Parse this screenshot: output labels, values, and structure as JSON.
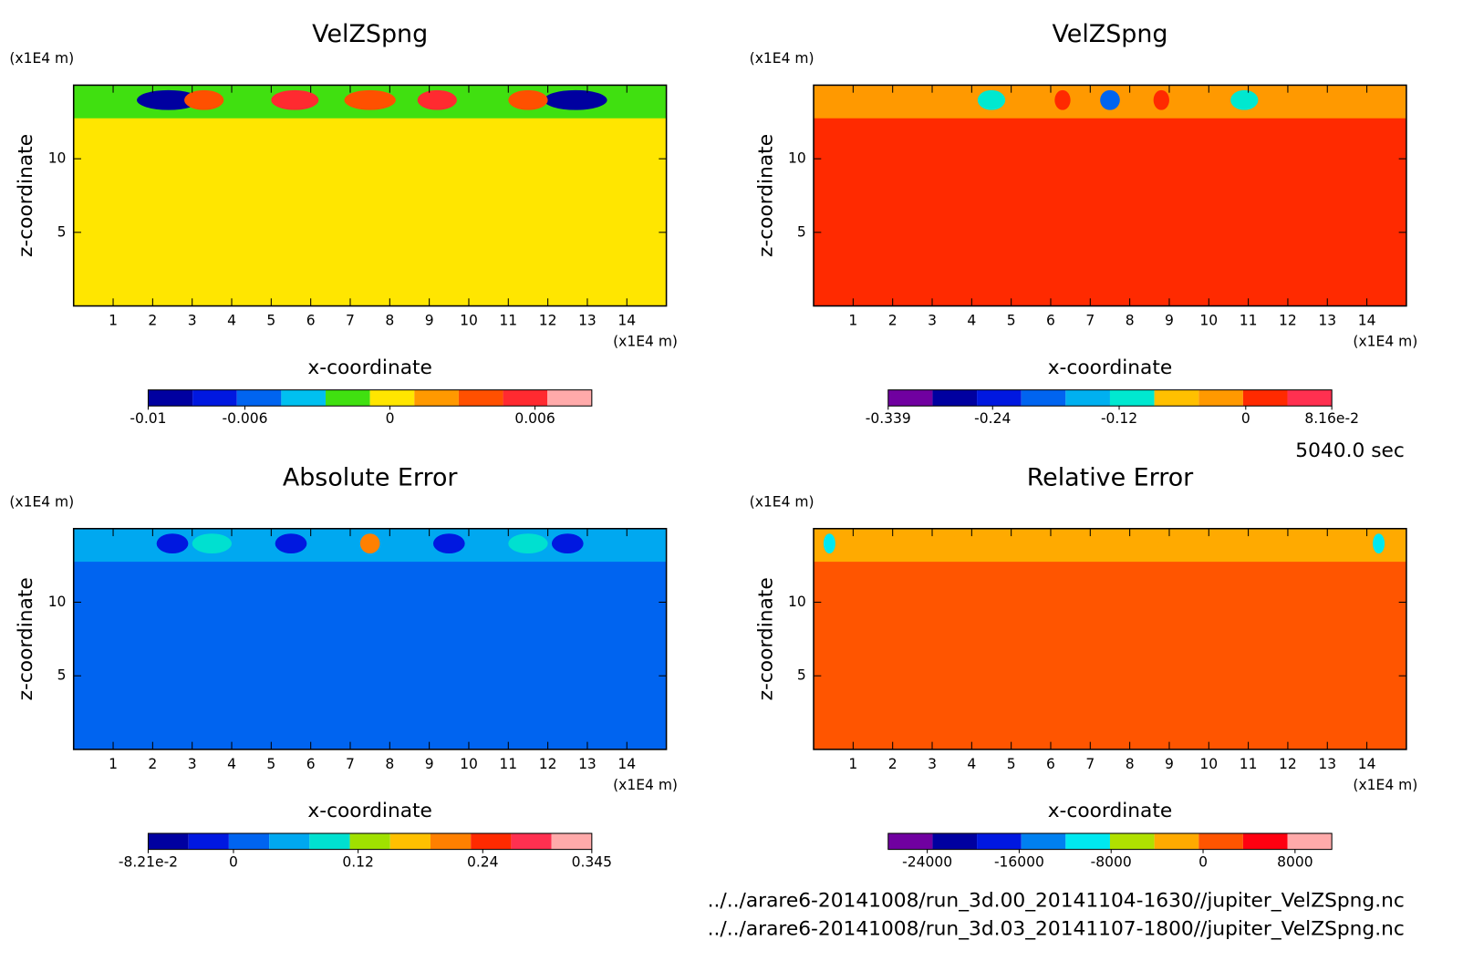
{
  "chart_data": [
    {
      "type": "contour",
      "title": "VelZSpng",
      "xlabel": "x-coordinate",
      "ylabel": "z-coordinate",
      "xunit": "(x1E4 m)",
      "yunit": "(x1E4 m)",
      "xlim": [
        0,
        15
      ],
      "ylim": [
        0,
        15
      ],
      "xticks": [
        1,
        2,
        3,
        4,
        5,
        6,
        7,
        8,
        9,
        10,
        11,
        12,
        13,
        14
      ],
      "yticks": [
        5,
        10
      ],
      "fill_color": "#ffe600",
      "band_color": "#40e010",
      "colorbar": {
        "clim": [
          -0.01,
          0.00835
        ],
        "colors": [
          "#0000a0",
          "#0018e0",
          "#0064f0",
          "#00c0f0",
          "#40e010",
          "#ffe600",
          "#ff9900",
          "#ff5000",
          "#ff2a30",
          "#ffaaaa"
        ],
        "ticks": [
          -0.01,
          -0.006,
          0,
          0.006
        ]
      }
    },
    {
      "type": "contour",
      "title": "VelZSpng",
      "xlabel": "x-coordinate",
      "ylabel": "z-coordinate",
      "xunit": "(x1E4 m)",
      "yunit": "(x1E4 m)",
      "xlim": [
        0,
        15
      ],
      "ylim": [
        0,
        15
      ],
      "xticks": [
        1,
        2,
        3,
        4,
        5,
        6,
        7,
        8,
        9,
        10,
        11,
        12,
        13,
        14
      ],
      "yticks": [
        5,
        10
      ],
      "fill_color": "#ff2a00",
      "band_color": "#ff9900",
      "colorbar": {
        "clim": [
          -0.339,
          0.0816
        ],
        "colors": [
          "#7000a0",
          "#0000a0",
          "#0018e0",
          "#0064f0",
          "#00b0f0",
          "#00e8d0",
          "#ffc000",
          "#ff9900",
          "#ff2a00",
          "#ff3050"
        ],
        "ticks": [
          -0.339,
          -0.24,
          -0.12,
          0,
          {
            "value": 0.0816,
            "label": "8.16e-2"
          }
        ]
      }
    },
    {
      "type": "contour",
      "title": "Absolute Error",
      "xlabel": "x-coordinate",
      "ylabel": "z-coordinate",
      "xunit": "(x1E4 m)",
      "yunit": "(x1E4 m)",
      "xlim": [
        0,
        15
      ],
      "ylim": [
        0,
        15
      ],
      "xticks": [
        1,
        2,
        3,
        4,
        5,
        6,
        7,
        8,
        9,
        10,
        11,
        12,
        13,
        14
      ],
      "yticks": [
        5,
        10
      ],
      "fill_color": "#0064f0",
      "band_color": "#00a8f0",
      "colorbar": {
        "clim": [
          -0.0821,
          0.345
        ],
        "colors": [
          "#0000a0",
          "#0018e0",
          "#0064f0",
          "#00a8f0",
          "#00e0d0",
          "#a0e000",
          "#ffc000",
          "#ff8000",
          "#ff2a00",
          "#ff3050",
          "#ffaaaa"
        ],
        "ticks": [
          {
            "value": -0.0821,
            "label": "-8.21e-2"
          },
          0,
          0.12,
          0.24,
          0.345
        ]
      }
    },
    {
      "type": "contour",
      "title": "Relative Error",
      "xlabel": "x-coordinate",
      "ylabel": "z-coordinate",
      "xunit": "(x1E4 m)",
      "yunit": "(x1E4 m)",
      "xlim": [
        0,
        15
      ],
      "ylim": [
        0,
        15
      ],
      "xticks": [
        1,
        2,
        3,
        4,
        5,
        6,
        7,
        8,
        9,
        10,
        11,
        12,
        13,
        14
      ],
      "yticks": [
        5,
        10
      ],
      "fill_color": "#ff5500",
      "band_color": "#ffaa00",
      "colorbar": {
        "clim": [
          -27400,
          11200
        ],
        "colors": [
          "#7000a0",
          "#0000a0",
          "#0018e0",
          "#0080f0",
          "#00e8f0",
          "#b0e000",
          "#ffaa00",
          "#ff5500",
          "#ff0010",
          "#ffaaaa"
        ],
        "ticks": [
          -24000,
          -16000,
          -8000,
          0,
          8000
        ]
      }
    }
  ],
  "footer": {
    "time": "5040.0 sec",
    "files": [
      "../../arare6-20141008/run_3d.00_20141104-1630//jupiter_VelZSpng.nc",
      "../../arare6-20141008/run_3d.03_20141107-1800//jupiter_VelZSpng.nc"
    ]
  }
}
